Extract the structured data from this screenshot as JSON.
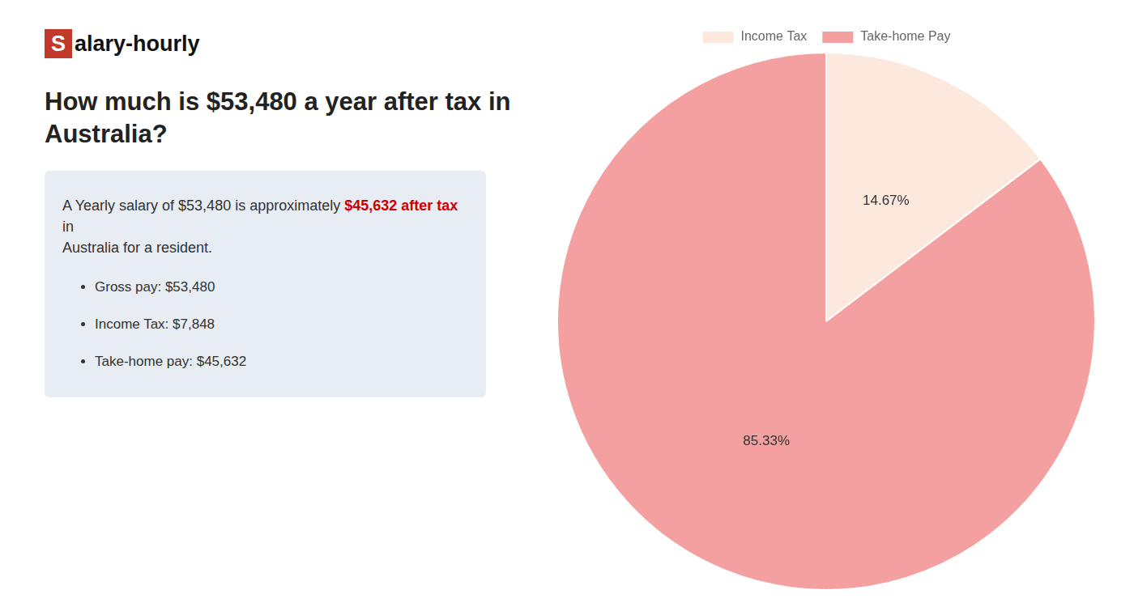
{
  "chart_data": {
    "type": "pie",
    "title": [
      "How much is $53,480 a year after tax in",
      "Australia?"
    ],
    "categories": [
      "Income Tax",
      "Take-home Pay"
    ],
    "values": [
      14.67,
      85.33
    ],
    "value_labels": [
      "14.67%",
      "85.33%"
    ],
    "colors": [
      "#fce8dc",
      "#f4a0a0"
    ],
    "data_labels": true,
    "legend": "top",
    "annotations": [
      [
        "S",
        "alary-hourly"
      ],
      [
        "A Yearly salary of $53,480 is approximately ",
        {
          "text": "$45,632 after tax",
          "color": "#cc0000"
        },
        " in"
      ],
      [
        "Australia for a resident."
      ],
      [
        "Gross pay: $53,480"
      ],
      [
        "Income Tax: $7,848"
      ],
      [
        "Take-home pay: $45,632"
      ]
    ]
  }
}
